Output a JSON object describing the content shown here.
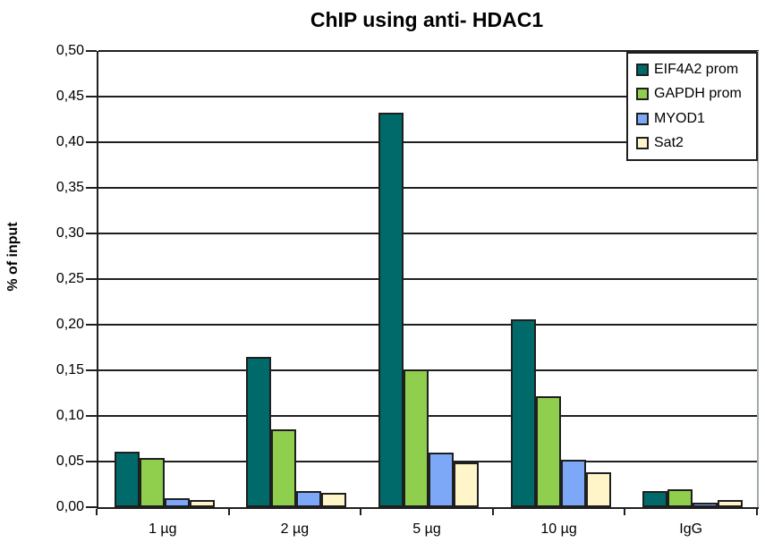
{
  "chart_data": {
    "type": "bar",
    "title": "ChIP using anti- HDAC1",
    "xlabel": "",
    "ylabel": "% of input",
    "categories": [
      "1 µg",
      "2 µg",
      "5 µg",
      "10 µg",
      "IgG"
    ],
    "series": [
      {
        "name": "EIF4A2 prom",
        "color": "#006969",
        "values": [
          0.061,
          0.165,
          0.432,
          0.206,
          0.018
        ]
      },
      {
        "name": "GAPDH prom",
        "color": "#90CE4E",
        "values": [
          0.054,
          0.085,
          0.151,
          0.122,
          0.02
        ]
      },
      {
        "name": "MYOD1",
        "color": "#7DA8F8",
        "values": [
          0.01,
          0.018,
          0.06,
          0.052,
          0.005
        ]
      },
      {
        "name": "Sat2",
        "color": "#FFF5C8",
        "values": [
          0.008,
          0.016,
          0.049,
          0.038,
          0.008
        ]
      }
    ],
    "ylim": [
      0,
      0.5
    ],
    "ytick_step": 0.05,
    "ytick_labels": [
      "0,00",
      "0,05",
      "0,10",
      "0,15",
      "0,20",
      "0,25",
      "0,30",
      "0,35",
      "0,40",
      "0,45",
      "0,50"
    ],
    "decimal_separator": ",",
    "grid": true,
    "legend_position": "top-right",
    "colors": {
      "axis": "#1f1f1f",
      "gridline": "#1f1f1f",
      "plot_right_border": "#a3aaaa",
      "background": "#ffffff"
    }
  }
}
